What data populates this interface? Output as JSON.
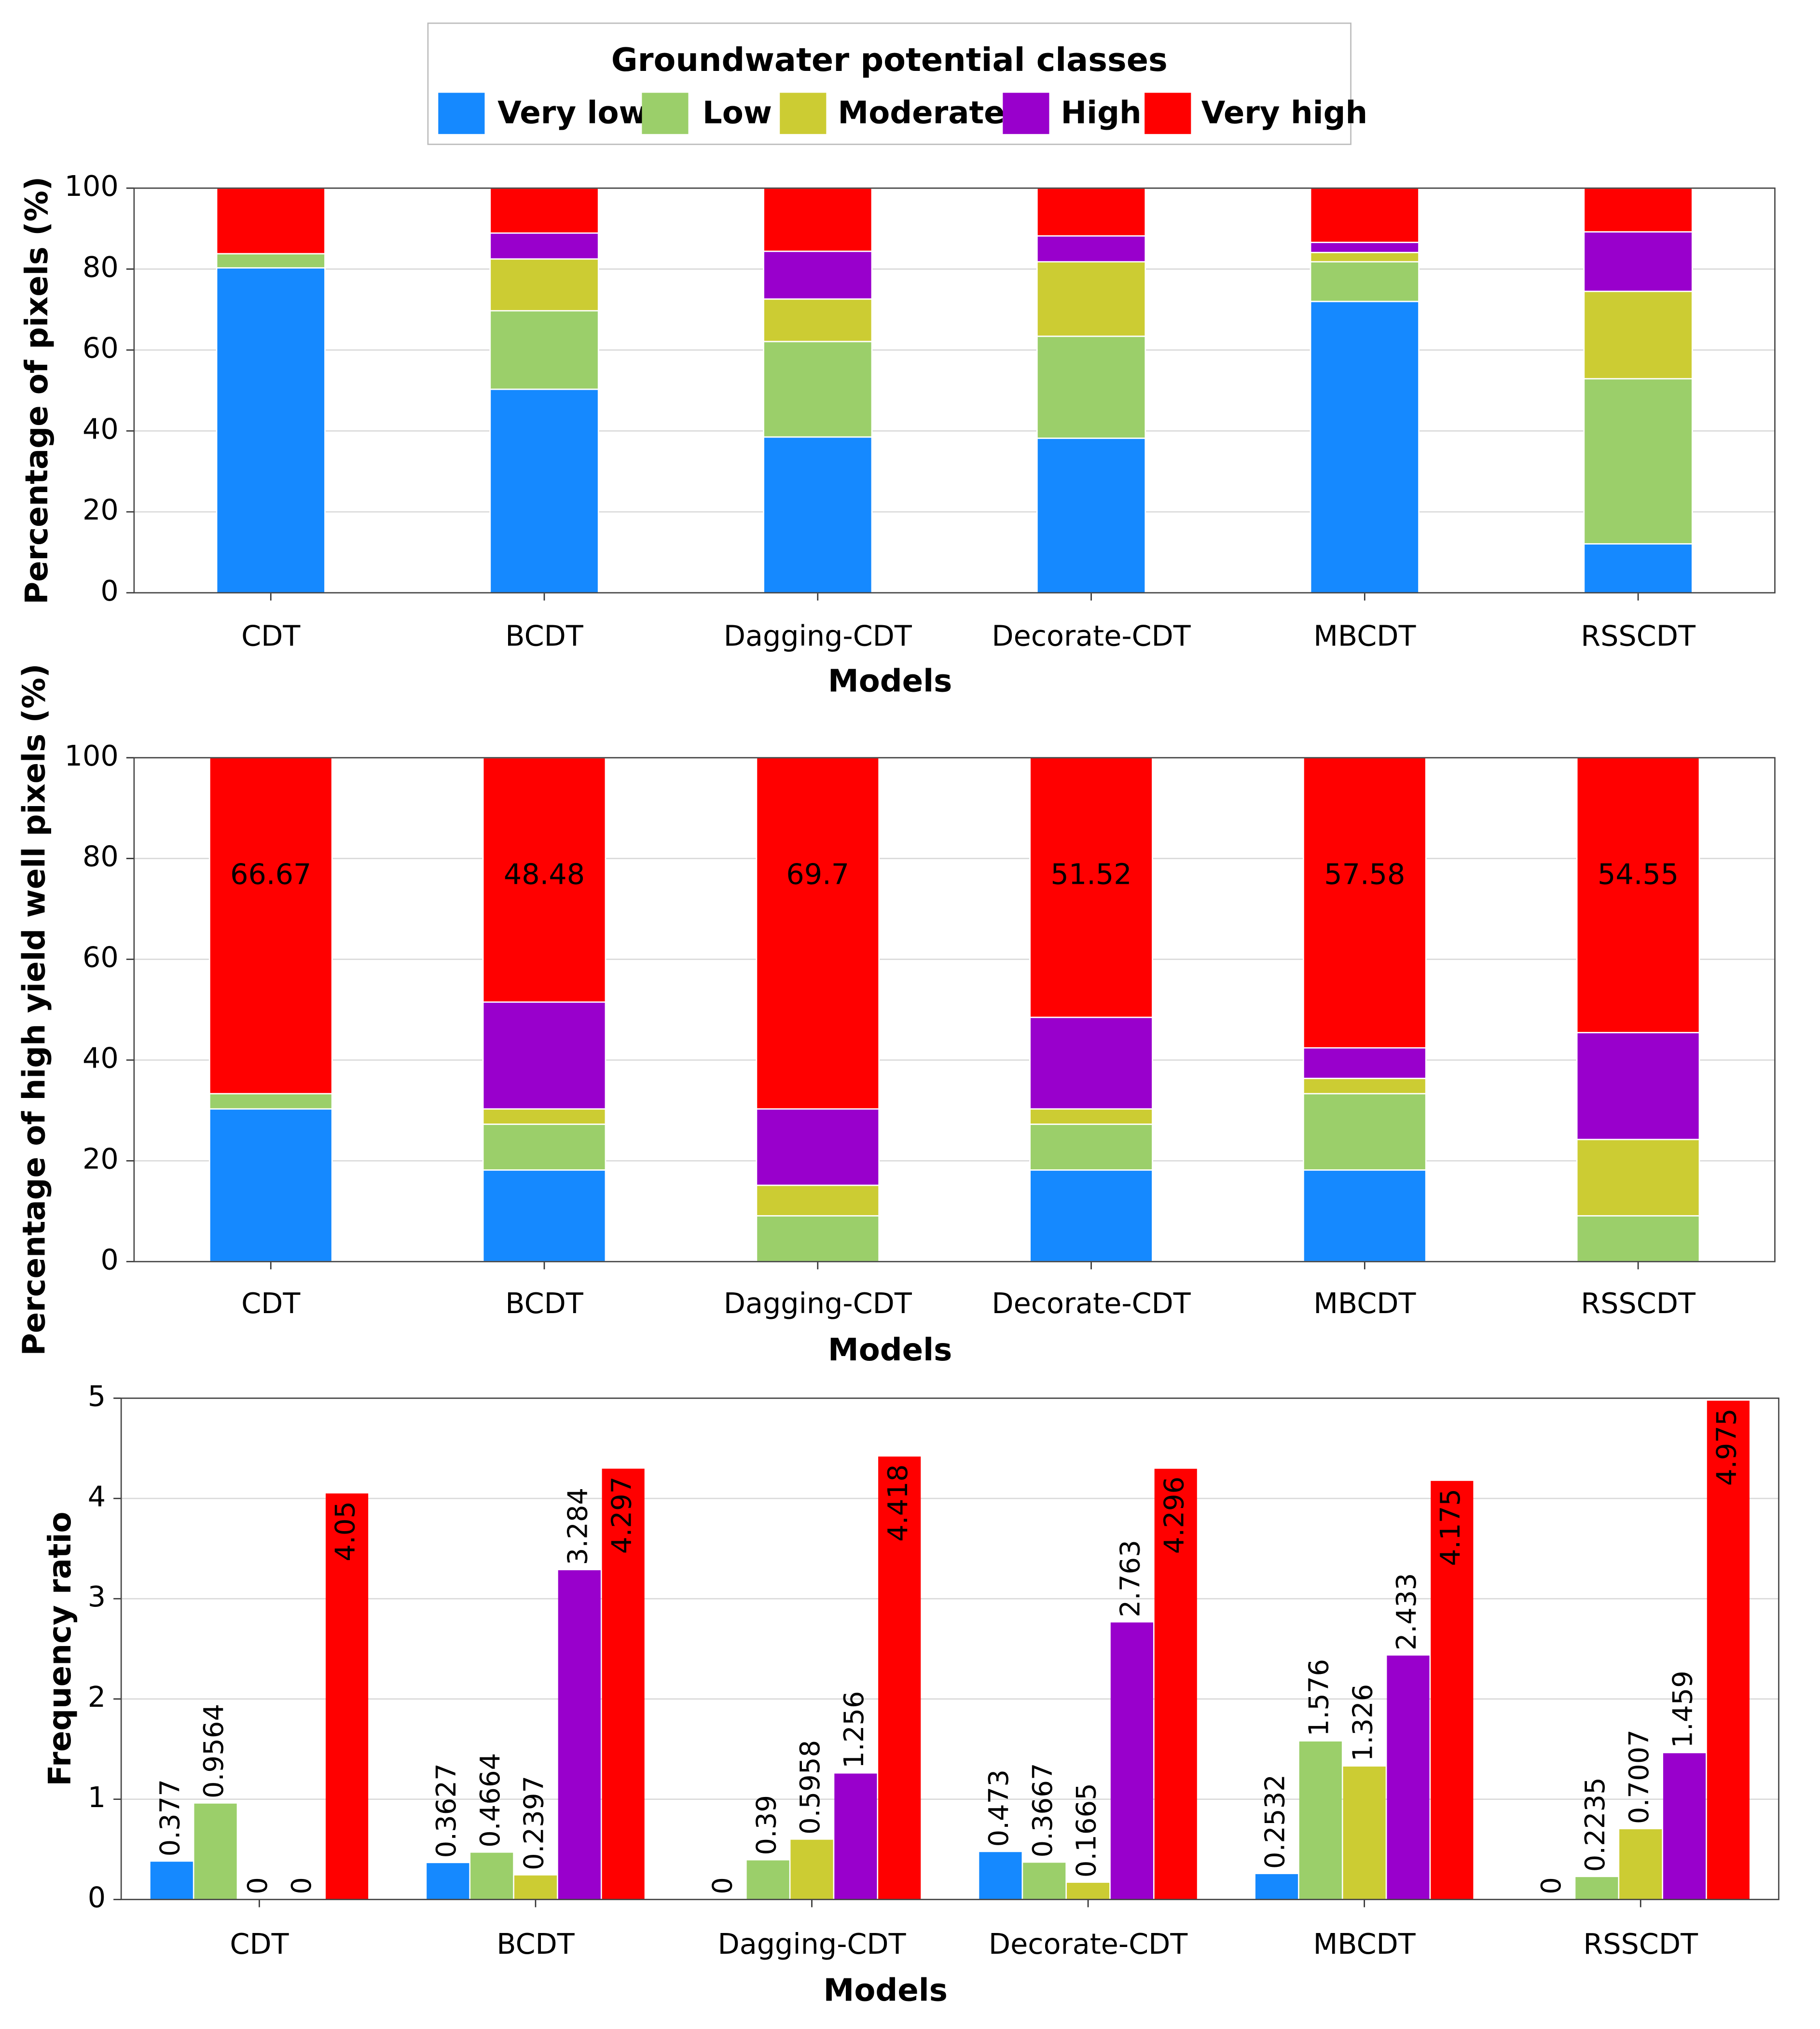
{
  "chart_data": [
    {
      "type": "stacked_bar",
      "legend_title": "Groundwater potential classes",
      "ylabel": "Percentage of pixels (%)",
      "xlabel": "Models",
      "categories": [
        "CDT",
        "BCDT",
        "Dagging-CDT",
        "Decorate-CDT",
        "MBCDT",
        "RSSCDT"
      ],
      "ylim": [
        0,
        100
      ],
      "yticks": [
        0,
        20,
        40,
        60,
        80,
        100
      ],
      "grid": true,
      "series": [
        {
          "name": "Very low",
          "color": "#1589ff",
          "values": [
            80.3,
            50.3,
            38.5,
            38.2,
            72.0,
            12.1
          ]
        },
        {
          "name": "Low",
          "color": "#9bcf6a",
          "values": [
            3.5,
            19.4,
            23.6,
            25.2,
            9.8,
            40.8
          ]
        },
        {
          "name": "Moderate",
          "color": "#cccc33",
          "values": [
            0,
            12.8,
            10.5,
            18.4,
            2.3,
            21.6
          ]
        },
        {
          "name": "High",
          "color": "#9900cc",
          "values": [
            0,
            6.4,
            11.8,
            6.4,
            2.5,
            14.7
          ]
        },
        {
          "name": "Very high",
          "color": "#ff0000",
          "values": [
            16.2,
            11.1,
            15.6,
            11.8,
            13.4,
            10.8
          ]
        }
      ]
    },
    {
      "type": "stacked_bar",
      "ylabel": "Percentage of high yield well pixels (%)",
      "xlabel": "Models",
      "categories": [
        "CDT",
        "BCDT",
        "Dagging-CDT",
        "Decorate-CDT",
        "MBCDT",
        "RSSCDT"
      ],
      "ylim": [
        0,
        100
      ],
      "yticks": [
        0,
        20,
        40,
        60,
        80,
        100
      ],
      "grid": true,
      "series": [
        {
          "color": "#1589ff",
          "values": [
            30.3,
            18.18,
            0,
            18.18,
            18.18,
            0
          ]
        },
        {
          "color": "#9bcf6a",
          "values": [
            3.03,
            9.09,
            9.09,
            9.09,
            15.15,
            9.09
          ]
        },
        {
          "color": "#cccc33",
          "values": [
            0,
            3.03,
            6.06,
            3.03,
            3.03,
            15.15
          ]
        },
        {
          "color": "#9900cc",
          "values": [
            0,
            21.21,
            15.15,
            18.18,
            6.06,
            21.21
          ]
        },
        {
          "color": "#ff0000",
          "values": [
            66.67,
            48.48,
            69.7,
            51.52,
            57.58,
            54.55
          ],
          "data_labels": true
        }
      ]
    },
    {
      "type": "bar",
      "ylabel": "Frequency ratio",
      "xlabel": "Models",
      "categories": [
        "CDT",
        "BCDT",
        "Dagging-CDT",
        "Decorate-CDT",
        "MBCDT",
        "RSSCDT"
      ],
      "ylim": [
        0,
        5
      ],
      "yticks": [
        0,
        1,
        2,
        3,
        4,
        5
      ],
      "grid": true,
      "data_labels": true,
      "series": [
        {
          "color": "#1589ff",
          "values": [
            0.377,
            0.3627,
            0,
            0.473,
            0.2532,
            0
          ]
        },
        {
          "color": "#9bcf6a",
          "values": [
            0.9564,
            0.4664,
            0.39,
            0.3667,
            1.576,
            0.2235
          ]
        },
        {
          "color": "#cccc33",
          "values": [
            0,
            0.2397,
            0.5958,
            0.1665,
            1.326,
            0.7007
          ]
        },
        {
          "color": "#9900cc",
          "values": [
            0,
            3.284,
            1.256,
            2.763,
            2.433,
            1.459
          ]
        },
        {
          "color": "#ff0000",
          "values": [
            4.05,
            4.297,
            4.418,
            4.296,
            4.175,
            4.975
          ]
        }
      ]
    }
  ]
}
